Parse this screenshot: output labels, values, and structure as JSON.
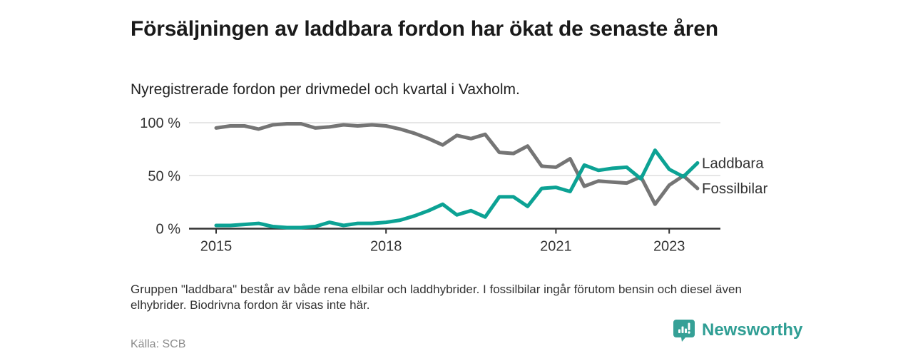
{
  "header": {
    "title": "Försäljningen av laddbara fordon har ökat de senaste åren",
    "subtitle": "Nyregistrerade fordon per drivmedel och kvartal i Vaxholm."
  },
  "chart_data": {
    "type": "line",
    "unit": "%",
    "grid": "horizontal",
    "legend_position": "right-of-line-ends",
    "ylim": [
      0,
      100
    ],
    "yticks": [
      0,
      50,
      100
    ],
    "ytick_labels": [
      "0 %",
      "50 %",
      "100 %"
    ],
    "xticks": [
      2015,
      2018,
      2021,
      2023
    ],
    "quarters": [
      "2015Q1",
      "2015Q2",
      "2015Q3",
      "2015Q4",
      "2016Q1",
      "2016Q2",
      "2016Q3",
      "2016Q4",
      "2017Q1",
      "2017Q2",
      "2017Q3",
      "2017Q4",
      "2018Q1",
      "2018Q2",
      "2018Q3",
      "2018Q4",
      "2019Q1",
      "2019Q2",
      "2019Q3",
      "2019Q4",
      "2020Q1",
      "2020Q2",
      "2020Q3",
      "2020Q4",
      "2021Q1",
      "2021Q2",
      "2021Q3",
      "2021Q4",
      "2022Q1",
      "2022Q2",
      "2022Q3",
      "2022Q4",
      "2023Q1",
      "2023Q2",
      "2023Q3"
    ],
    "series": [
      {
        "name": "Laddbara",
        "color": "#0ca294",
        "values": [
          3,
          3,
          4,
          5,
          2,
          1,
          1,
          2,
          6,
          3,
          5,
          5,
          6,
          8,
          12,
          17,
          23,
          13,
          17,
          11,
          30,
          30,
          21,
          38,
          39,
          35,
          60,
          55,
          57,
          58,
          47,
          74,
          56,
          49,
          62
        ]
      },
      {
        "name": "Fossilbilar",
        "color": "#757575",
        "values": [
          95,
          97,
          97,
          94,
          98,
          99,
          99,
          95,
          96,
          98,
          97,
          98,
          97,
          94,
          90,
          85,
          79,
          88,
          85,
          89,
          72,
          71,
          78,
          59,
          58,
          66,
          40,
          45,
          44,
          43,
          49,
          23,
          41,
          50,
          38
        ]
      }
    ],
    "axis_color": "#333333",
    "gridline_color": "#dedede",
    "tick_label_color": "#333333"
  },
  "annotations": {
    "footnote": "Gruppen \"laddbara\" består av både rena elbilar och laddhybrider. I fossilbilar ingår förutom bensin och diesel även elhybrider. Biodrivna fordon är visas inte här.",
    "source": "Källa: SCB"
  },
  "brand": {
    "name": "Newsworthy",
    "icon": "newsworthy-chart-bubble-icon",
    "icon_color": "#35a096",
    "text_color": "#2f9e94"
  }
}
